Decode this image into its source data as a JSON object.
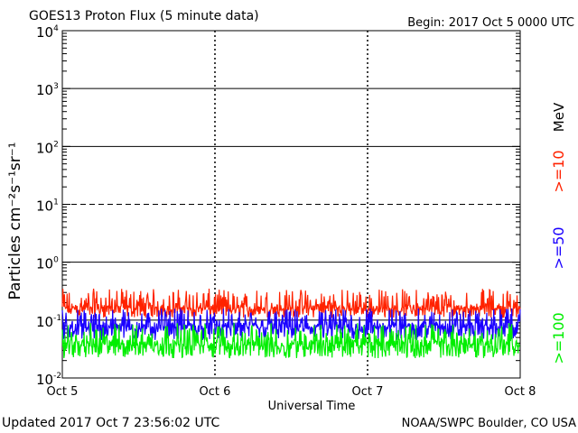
{
  "chart_data": {
    "type": "line",
    "title": "GOES13 Proton Flux (5 minute data)",
    "begin_label": "Begin: 2017 Oct 5 0000 UTC",
    "updated_label": "Updated 2017 Oct  7 23:56:02 UTC",
    "credit": "NOAA/SWPC Boulder, CO USA",
    "xlabel": "Universal Time",
    "ylabel": "Particles cm⁻²s⁻¹sr⁻¹",
    "unit_label": "MeV",
    "y_scale": "log",
    "ylim": [
      0.01,
      10000
    ],
    "xlim_days": [
      0,
      3
    ],
    "x_ticks": [
      {
        "day": 0,
        "label": "Oct 5"
      },
      {
        "day": 1,
        "label": "Oct 6"
      },
      {
        "day": 2,
        "label": "Oct 7"
      },
      {
        "day": 3,
        "label": "Oct 8"
      }
    ],
    "y_ticks": [
      {
        "value": 0.01,
        "base": "10",
        "exp": "-2"
      },
      {
        "value": 0.1,
        "base": "10",
        "exp": "-1"
      },
      {
        "value": 1,
        "base": "10",
        "exp": "0"
      },
      {
        "value": 10,
        "base": "10",
        "exp": "1"
      },
      {
        "value": 100,
        "base": "10",
        "exp": "2"
      },
      {
        "value": 1000,
        "base": "10",
        "exp": "3"
      },
      {
        "value": 10000,
        "base": "10",
        "exp": "4"
      }
    ],
    "threshold_lines": [
      {
        "value": 1,
        "style": "solid"
      },
      {
        "value": 10,
        "style": "dashed"
      },
      {
        "value": 100,
        "style": "solid"
      },
      {
        "value": 1000,
        "style": "solid"
      },
      {
        "value": 0.1,
        "style": "solid"
      }
    ],
    "series": [
      {
        "name": ">=10",
        "color": "#ff2200",
        "baseline": 0.15,
        "noise_range": [
          0.11,
          0.35
        ]
      },
      {
        "name": ">=50",
        "color": "#1a00ff",
        "baseline": 0.07,
        "noise_range": [
          0.045,
          0.16
        ]
      },
      {
        "name": ">=100",
        "color": "#00ee00",
        "baseline": 0.035,
        "noise_range": [
          0.022,
          0.09
        ]
      }
    ]
  }
}
